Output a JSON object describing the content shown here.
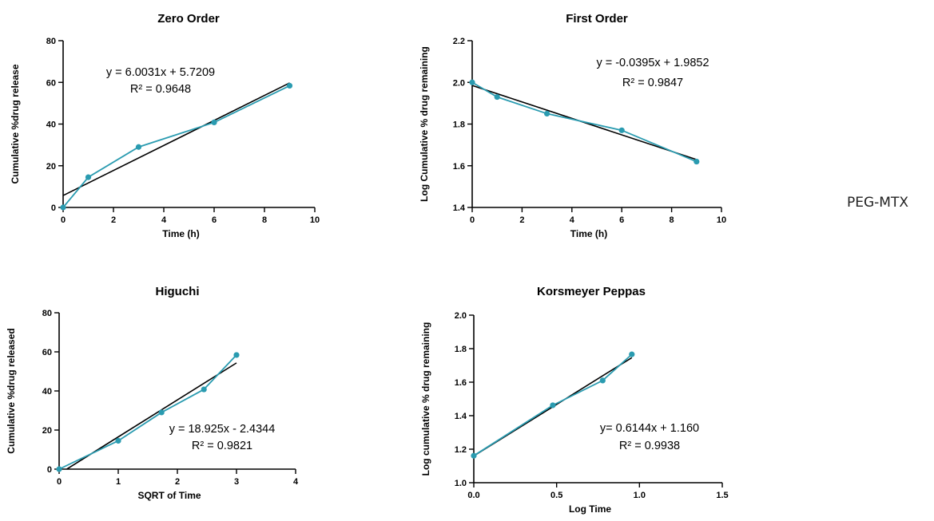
{
  "side_label": "PEG-MTX",
  "colors": {
    "data_series": "#2a9bb0",
    "fit_line": "#000000",
    "axis": "#000000"
  },
  "chart_data": [
    {
      "type": "line",
      "title": "Zero Order",
      "xlabel": "Time (h)",
      "ylabel": "Cumulative %drug release",
      "xlim": [
        0,
        10
      ],
      "ylim": [
        0,
        80
      ],
      "xticks": [
        0,
        2,
        4,
        6,
        8,
        10
      ],
      "yticks": [
        0,
        20,
        40,
        60,
        80
      ],
      "xtick_labels": [
        "0",
        "2",
        "4",
        "6",
        "8",
        "10"
      ],
      "ytick_labels": [
        "0",
        "20",
        "40",
        "60",
        "80"
      ],
      "grid": false,
      "series": [
        {
          "x": [
            0,
            1,
            3,
            6,
            9
          ],
          "y": [
            0,
            14.5,
            29,
            40.8,
            58.4
          ]
        }
      ],
      "fit": {
        "slope": 6.0031,
        "intercept": 5.7209,
        "x_range": [
          0,
          9
        ]
      },
      "annotation": [
        "y = 6.0031x + 5.7209",
        "R² = 0.9648"
      ]
    },
    {
      "type": "line",
      "title": "First Order",
      "xlabel": "Time (h)",
      "ylabel": "Log Cumulative % drug remaining",
      "xlim": [
        0,
        10
      ],
      "ylim": [
        1.4,
        2.2
      ],
      "xticks": [
        0,
        2,
        4,
        6,
        8,
        10
      ],
      "yticks": [
        1.4,
        1.6,
        1.8,
        2.0,
        2.2
      ],
      "xtick_labels": [
        "0",
        "2",
        "4",
        "6",
        "8",
        "10"
      ],
      "ytick_labels": [
        "1.4",
        "1.6",
        "1.8",
        "2.0",
        "2.2"
      ],
      "grid": false,
      "series": [
        {
          "x": [
            0,
            1,
            3,
            6,
            9
          ],
          "y": [
            2.0,
            1.93,
            1.85,
            1.77,
            1.62
          ]
        }
      ],
      "fit": {
        "slope": -0.0395,
        "intercept": 1.9852,
        "x_range": [
          0,
          9
        ]
      },
      "annotation": [
        "y = -0.0395x + 1.9852",
        "R² = 0.9847"
      ]
    },
    {
      "type": "line",
      "title": "Higuchi",
      "xlabel": "SQRT of Time",
      "ylabel": "Cumulative %drug released",
      "xlim": [
        0,
        4
      ],
      "ylim": [
        0,
        80
      ],
      "xticks": [
        0,
        1,
        2,
        3,
        4
      ],
      "yticks": [
        0,
        20,
        40,
        60,
        80
      ],
      "xtick_labels": [
        "0",
        "1",
        "2",
        "3",
        "4"
      ],
      "ytick_labels": [
        "0",
        "20",
        "40",
        "60",
        "80"
      ],
      "grid": false,
      "series": [
        {
          "x": [
            0,
            1,
            1.732,
            2.449,
            3
          ],
          "y": [
            0,
            14.5,
            29,
            40.8,
            58.4
          ]
        }
      ],
      "fit": {
        "slope": 18.925,
        "intercept": -2.4344,
        "x_range": [
          0.13,
          3
        ]
      },
      "annotation": [
        "y = 18.925x - 2.4344",
        "R² = 0.9821"
      ]
    },
    {
      "type": "line",
      "title": "Korsmeyer Peppas",
      "xlabel": "Log Time",
      "ylabel": "Log cumulative % drug remaining",
      "xlim": [
        0,
        1.5
      ],
      "ylim": [
        1.0,
        2.0
      ],
      "xticks": [
        0,
        0.5,
        1.0,
        1.5
      ],
      "yticks": [
        1.0,
        1.2,
        1.4,
        1.6,
        1.8,
        2.0
      ],
      "xtick_labels": [
        "0.0",
        "0.5",
        "1.0",
        "1.5"
      ],
      "ytick_labels": [
        "1.0",
        "1.2",
        "1.4",
        "1.6",
        "1.8",
        "2.0"
      ],
      "grid": false,
      "series": [
        {
          "x": [
            0,
            0.477,
            0.778,
            0.954
          ],
          "y": [
            1.161,
            1.462,
            1.61,
            1.766
          ]
        }
      ],
      "fit": {
        "slope": 0.6144,
        "intercept": 1.16,
        "x_range": [
          0,
          0.954
        ]
      },
      "annotation": [
        "y= 0.6144x + 1.160",
        "R² = 0.9938"
      ]
    }
  ]
}
